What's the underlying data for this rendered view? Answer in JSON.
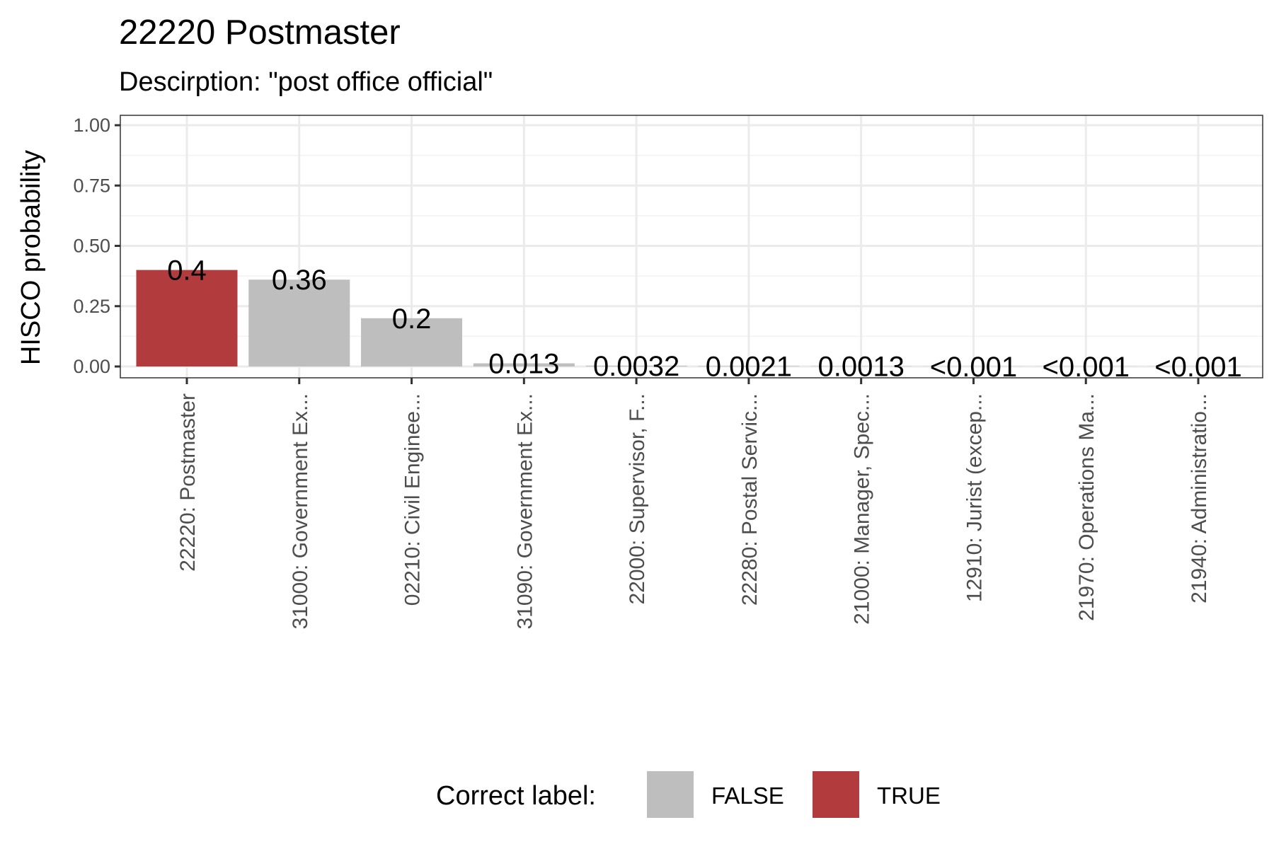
{
  "chart_data": {
    "type": "bar",
    "title": "22220 Postmaster",
    "subtitle": "Descirption: \"post office official\"",
    "xlabel": "",
    "ylabel": "HISCO probability",
    "ylim": [
      0,
      1
    ],
    "yticks": [
      "0.00",
      "0.25",
      "0.50",
      "0.75",
      "1.00"
    ],
    "ytick_values": [
      0,
      0.25,
      0.5,
      0.75,
      1.0
    ],
    "categories": [
      "22220: Postmaster",
      "31000: Government Ex...",
      "02210: Civil Enginee...",
      "31090: Government Ex...",
      "22000: Supervisor, F...",
      "22280: Postal Servic...",
      "21000: Manager, Spec...",
      "12910: Jurist (excep...",
      "21970: Operations Ma...",
      "21940: Administratio..."
    ],
    "values": [
      0.4,
      0.36,
      0.2,
      0.013,
      0.0032,
      0.0021,
      0.0013,
      0.0005,
      0.0005,
      0.0005
    ],
    "value_labels": [
      "0.4",
      "0.36",
      "0.2",
      "0.013",
      "0.0032",
      "0.0021",
      "0.0013",
      "<0.001",
      "<0.001",
      "<0.001"
    ],
    "correct": [
      true,
      false,
      false,
      false,
      false,
      false,
      false,
      false,
      false,
      false
    ],
    "grid": true,
    "legend": {
      "title": "Correct label:",
      "position": "bottom",
      "entries": [
        {
          "label": "FALSE",
          "color": "#bebebe"
        },
        {
          "label": "TRUE",
          "color": "#b23b3e"
        }
      ]
    },
    "colors": {
      "false": "#bebebe",
      "true": "#b23b3e"
    }
  }
}
